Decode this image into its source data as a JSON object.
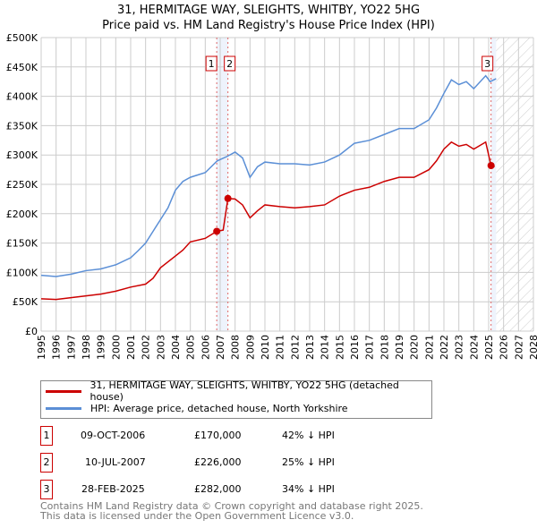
{
  "chart_data": {
    "type": "line",
    "title": "31, HERMITAGE WAY, SLEIGHTS, WHITBY, YO22 5HG",
    "subtitle": "Price paid vs. HM Land Registry's House Price Index (HPI)",
    "xlim": [
      1995,
      2028
    ],
    "ylim": [
      0,
      500000
    ],
    "x_ticks": [
      "1995",
      "1996",
      "1997",
      "1998",
      "1999",
      "2000",
      "2001",
      "2002",
      "2003",
      "2004",
      "2005",
      "2006",
      "2007",
      "2008",
      "2009",
      "2010",
      "2011",
      "2012",
      "2013",
      "2014",
      "2015",
      "2016",
      "2017",
      "2018",
      "2019",
      "2020",
      "2021",
      "2022",
      "2023",
      "2024",
      "2025",
      "2026",
      "2027",
      "2028"
    ],
    "y_ticks": [
      {
        "v": 0,
        "label": "£0"
      },
      {
        "v": 50000,
        "label": "£50K"
      },
      {
        "v": 100000,
        "label": "£100K"
      },
      {
        "v": 150000,
        "label": "£150K"
      },
      {
        "v": 200000,
        "label": "£200K"
      },
      {
        "v": 250000,
        "label": "£250K"
      },
      {
        "v": 300000,
        "label": "£300K"
      },
      {
        "v": 350000,
        "label": "£350K"
      },
      {
        "v": 400000,
        "label": "£400K"
      },
      {
        "v": 450000,
        "label": "£450K"
      },
      {
        "v": 500000,
        "label": "£500K"
      }
    ],
    "grid": true,
    "forecast_from": 2025.5,
    "series": [
      {
        "name": "31, HERMITAGE WAY, SLEIGHTS, WHITBY, YO22 5HG (detached house)",
        "color": "#cc0000",
        "x": [
          1995,
          1996,
          1997,
          1998,
          1999,
          2000,
          2001,
          2002,
          2002.5,
          2003,
          2004,
          2004.5,
          2005,
          2006,
          2006.77,
          2007.2,
          2007.52,
          2008,
          2008.5,
          2009,
          2009.5,
          2010,
          2011,
          2012,
          2013,
          2014,
          2015,
          2016,
          2017,
          2018,
          2019,
          2020,
          2021,
          2021.5,
          2022,
          2022.5,
          2023,
          2023.5,
          2024,
          2024.8,
          2025.16,
          2025.4
        ],
        "y": [
          55000,
          54000,
          57000,
          60000,
          63000,
          68000,
          75000,
          80000,
          90000,
          108000,
          128000,
          138000,
          152000,
          158000,
          170000,
          172000,
          226000,
          225000,
          215000,
          193000,
          205000,
          215000,
          212000,
          210000,
          212000,
          215000,
          230000,
          240000,
          245000,
          255000,
          262000,
          262000,
          275000,
          290000,
          310000,
          322000,
          315000,
          318000,
          310000,
          322000,
          282000,
          280000
        ]
      },
      {
        "name": "HPI: Average price, detached house, North Yorkshire",
        "color": "#5b8fd6",
        "x": [
          1995,
          1996,
          1997,
          1998,
          1999,
          2000,
          2001,
          2001.5,
          2002,
          2002.5,
          2003,
          2003.5,
          2004,
          2004.5,
          2005,
          2006,
          2006.8,
          2007.5,
          2008,
          2008.5,
          2009,
          2009.5,
          2010,
          2011,
          2012,
          2013,
          2014,
          2015,
          2016,
          2017,
          2018,
          2019,
          2020,
          2021,
          2021.5,
          2022,
          2022.5,
          2023,
          2023.5,
          2024,
          2024.8,
          2025.1,
          2025.5
        ],
        "y": [
          95000,
          93000,
          97000,
          103000,
          106000,
          113000,
          125000,
          137000,
          150000,
          170000,
          190000,
          210000,
          240000,
          255000,
          262000,
          270000,
          290000,
          298000,
          305000,
          295000,
          262000,
          280000,
          288000,
          285000,
          285000,
          283000,
          288000,
          300000,
          320000,
          325000,
          335000,
          345000,
          345000,
          360000,
          380000,
          405000,
          428000,
          420000,
          425000,
          413000,
          435000,
          425000,
          430000
        ]
      }
    ],
    "sales": [
      {
        "label": "1",
        "x": 2006.77,
        "date": "09-OCT-2006",
        "price": "£170,000",
        "value": 170000,
        "hpi": "42% ↓ HPI"
      },
      {
        "label": "2",
        "x": 2007.52,
        "date": "10-JUL-2007",
        "price": "£226,000",
        "value": 226000,
        "hpi": "25% ↓ HPI"
      },
      {
        "label": "3",
        "x": 2025.16,
        "date": "28-FEB-2025",
        "price": "£282,000",
        "value": 282000,
        "hpi": "34% ↓ HPI"
      }
    ]
  },
  "footer": [
    "Contains HM Land Registry data © Crown copyright and database right 2025.",
    "This data is licensed under the Open Government Licence v3.0."
  ]
}
